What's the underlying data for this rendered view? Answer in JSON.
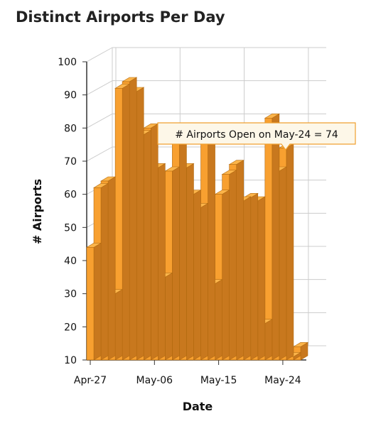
{
  "chart_data": {
    "type": "bar",
    "title": "Distinct Airports Per Day",
    "xlabel": "Date",
    "ylabel": "# Airports",
    "ylim": [
      10,
      100
    ],
    "yticks": [
      10,
      20,
      30,
      40,
      50,
      60,
      70,
      80,
      90,
      100
    ],
    "x_tick_labels": [
      "Apr-27",
      "May-06",
      "May-15",
      "May-24"
    ],
    "categories": [
      "Apr-27",
      "Apr-28",
      "Apr-29",
      "Apr-30",
      "May-01",
      "May-02",
      "May-03",
      "May-04",
      "May-05",
      "May-06",
      "May-07",
      "May-08",
      "May-09",
      "May-10",
      "May-11",
      "May-12",
      "May-13",
      "May-14",
      "May-15",
      "May-16",
      "May-17",
      "May-18",
      "May-19",
      "May-20",
      "May-21",
      "May-22",
      "May-23",
      "May-24",
      "May-25",
      "May-26"
    ],
    "series": [
      {
        "values": [
          44,
          62,
          64,
          30,
          92,
          94,
          91,
          78,
          80,
          68,
          35,
          67,
          80,
          68,
          60,
          56,
          78,
          33,
          60,
          66,
          69,
          58,
          59,
          58,
          21,
          83,
          67,
          74,
          11,
          14
        ]
      }
    ],
    "tooltip": "# Airports Open on May-24 = 74",
    "colors": {
      "bar_front": "#f8a030",
      "bar_side": "#c8781e",
      "bar_top": "#fbb44a",
      "bar_edge": "#b36a10",
      "grid": "#cccccc",
      "tooltip_bg": "#fdf7e8",
      "tooltip_border": "#f0a030"
    },
    "grid": true,
    "legend": "none"
  }
}
